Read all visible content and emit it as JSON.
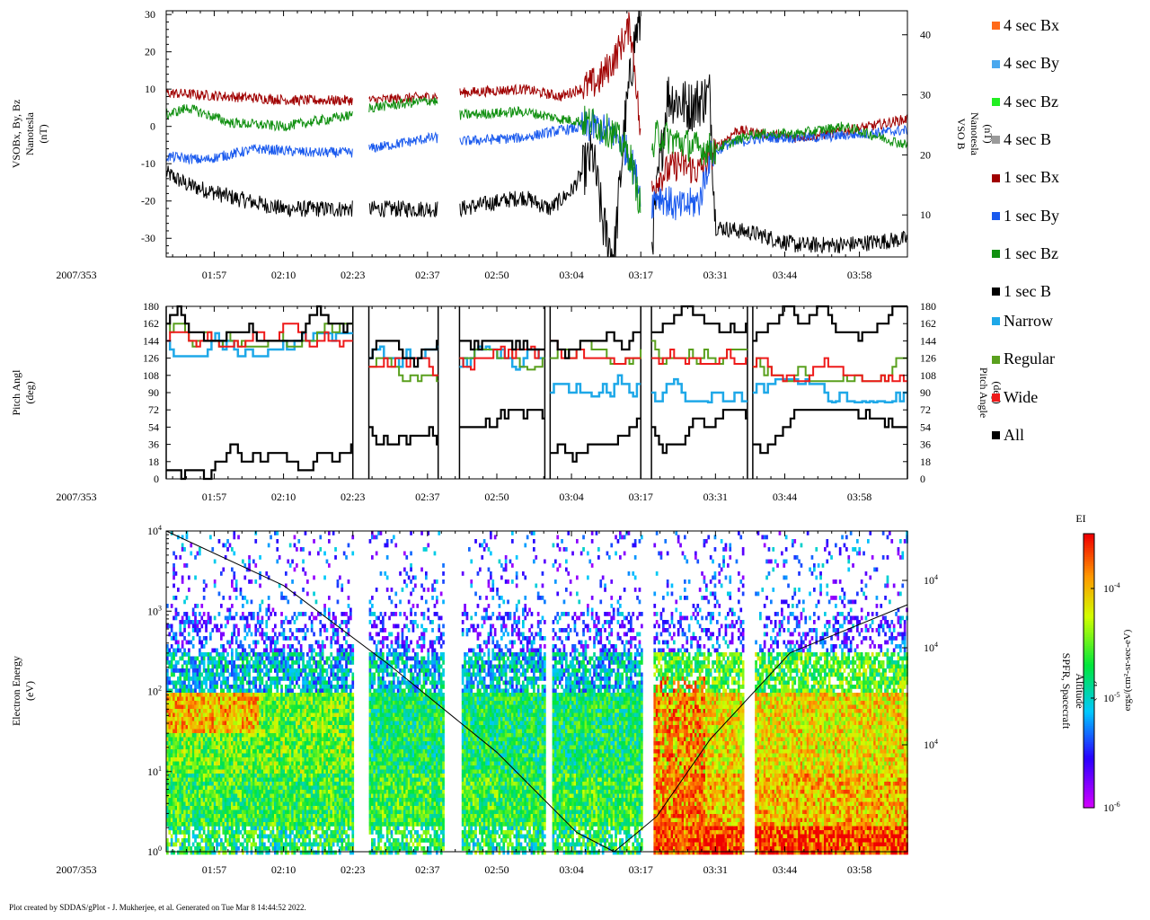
{
  "footer": "Plot created by SDDAS/gPlot - J. Mukherjee, et al.  Generated on Tue Mar 8 14:44:52 2022.",
  "date_label": "2007/353",
  "time_ticks": [
    "01:57",
    "02:10",
    "02:23",
    "02:37",
    "02:50",
    "03:04",
    "03:17",
    "03:31",
    "03:44",
    "03:58"
  ],
  "legend_b": [
    {
      "label": "4 sec Bx",
      "color": "#ff6a1a"
    },
    {
      "label": "4 sec By",
      "color": "#4aa8ee"
    },
    {
      "label": "4 sec Bz",
      "color": "#22ee22"
    },
    {
      "label": "4 sec B",
      "color": "#9a9a9a"
    },
    {
      "label": "1 sec Bx",
      "color": "#a00000"
    },
    {
      "label": "1 sec By",
      "color": "#1a5aee"
    },
    {
      "label": "1 sec Bz",
      "color": "#109010"
    },
    {
      "label": "1 sec B",
      "color": "#000000"
    }
  ],
  "legend_pa": [
    {
      "label": "Narrow",
      "color": "#1ea8e8"
    },
    {
      "label": "Regular",
      "color": "#5aa01e"
    },
    {
      "label": "Wide",
      "color": "#ee1a1a"
    },
    {
      "label": "All",
      "color": "#000000"
    }
  ],
  "colorbar": {
    "title": "EI",
    "unit_label": "ergs/(cm²-sr-sec-eV)",
    "ticks": [
      {
        "base": "10",
        "exp": "-4",
        "value_log": -4
      },
      {
        "base": "10",
        "exp": "-5",
        "value_log": -5
      },
      {
        "base": "10",
        "exp": "-6",
        "value_log": -6
      }
    ],
    "range_log": [
      -6,
      -3.5
    ]
  },
  "chart_data": [
    {
      "type": "line",
      "title": "",
      "xlabel": "2007/353",
      "ylabel_lines": [
        "VSOBx, By, Bz",
        "Nanotesla",
        "(nT)"
      ],
      "ylabel_right_lines": [
        "VSO B",
        "Nanotesla",
        "(nT)"
      ],
      "xlim": [
        "01:48",
        "04:07"
      ],
      "ylim": [
        -35,
        31
      ],
      "yticks": [
        -30,
        -20,
        -10,
        0,
        10,
        20,
        30
      ],
      "ylim_right": [
        3,
        44
      ],
      "yticks_right": [
        10,
        20,
        30,
        40
      ],
      "data_gaps": [
        [
          "02:23",
          "02:26"
        ],
        [
          "02:39",
          "02:43"
        ],
        [
          "03:17",
          "03:19"
        ]
      ],
      "series": [
        {
          "name": "1 sec Bx",
          "color": "#a00000",
          "x": [
            "01:48",
            "02:00",
            "02:12",
            "02:23",
            "02:26",
            "02:38",
            "02:43",
            "02:55",
            "03:02",
            "03:09",
            "03:12",
            "03:15",
            "03:16",
            "03:18",
            "03:20",
            "03:24",
            "03:28",
            "03:31",
            "03:35",
            "03:40",
            "03:46",
            "03:52",
            "04:00",
            "04:07"
          ],
          "y": [
            9,
            8,
            7,
            7,
            7,
            8,
            9,
            10,
            8,
            12,
            18,
            27,
            14,
            -22,
            -14,
            -10,
            -12,
            -6,
            -1,
            -2,
            -3,
            -2,
            0,
            2
          ]
        },
        {
          "name": "1 sec By",
          "color": "#1a5aee",
          "x": [
            "01:48",
            "01:55",
            "02:05",
            "02:15",
            "02:23",
            "02:26",
            "02:38",
            "02:43",
            "02:55",
            "03:02",
            "03:08",
            "03:12",
            "03:15",
            "03:17",
            "03:18",
            "03:20",
            "03:24",
            "03:28",
            "03:30",
            "03:33",
            "03:40",
            "03:50",
            "04:07"
          ],
          "y": [
            -8,
            -9,
            -6,
            -7,
            -7,
            -6,
            -3,
            -4,
            -3,
            -1,
            0,
            -2,
            -8,
            -18,
            -24,
            -18,
            -22,
            -20,
            -8,
            -5,
            -3,
            -3,
            -1
          ]
        },
        {
          "name": "1 sec Bz",
          "color": "#109010",
          "x": [
            "01:48",
            "01:52",
            "02:00",
            "02:10",
            "02:23",
            "02:26",
            "02:38",
            "02:43",
            "02:55",
            "03:02",
            "03:08",
            "03:12",
            "03:15",
            "03:17",
            "03:18",
            "03:20",
            "03:24",
            "03:28",
            "03:31",
            "03:38",
            "03:46",
            "03:55",
            "04:07"
          ],
          "y": [
            3,
            5,
            1,
            0,
            3,
            5,
            7,
            3,
            4,
            2,
            1,
            -2,
            -8,
            -22,
            -15,
            -2,
            -4,
            -6,
            -6,
            -2,
            -2,
            0,
            -5
          ]
        },
        {
          "name": "1 sec B",
          "color": "#000000",
          "x": [
            "01:48",
            "01:52",
            "02:00",
            "02:10",
            "02:23",
            "02:26",
            "02:38",
            "02:43",
            "02:55",
            "03:00",
            "03:04",
            "03:08",
            "03:10",
            "03:12",
            "03:14",
            "03:16",
            "03:17",
            "03:18",
            "03:19",
            "03:22",
            "03:26",
            "03:30",
            "03:31",
            "03:38",
            "03:46",
            "03:55",
            "04:07"
          ],
          "y": [
            17,
            15,
            13,
            11,
            11,
            11,
            11,
            11,
            13,
            11,
            14,
            20,
            8,
            3,
            25,
            40,
            42,
            22,
            5,
            30,
            28,
            30,
            8,
            7,
            5,
            5,
            6
          ]
        }
      ]
    },
    {
      "type": "step",
      "title": "",
      "xlabel": "2007/353",
      "ylabel_lines": [
        "Pitch Angl",
        "(deg)"
      ],
      "ylabel_right_lines": [
        "Pitch Angle",
        "(deg)"
      ],
      "xlim": [
        "01:48",
        "04:07"
      ],
      "ylim": [
        0,
        180
      ],
      "yticks": [
        0,
        18,
        36,
        54,
        72,
        90,
        108,
        126,
        144,
        162,
        180
      ],
      "segments": [
        {
          "start": "01:48",
          "end": "02:23",
          "upper": [
            144,
            180
          ],
          "lower": [
            0,
            36
          ],
          "narrow": 140
        },
        {
          "start": "02:26",
          "end": "02:39",
          "upper": [
            108,
            144
          ],
          "lower": [
            36,
            72
          ],
          "narrow": 126
        },
        {
          "start": "02:43",
          "end": "02:59",
          "upper": [
            120,
            144
          ],
          "lower": [
            54,
            72
          ],
          "narrow": 126
        },
        {
          "start": "03:00",
          "end": "03:17",
          "upper": [
            126,
            180
          ],
          "lower": [
            0,
            72
          ],
          "narrow": 98
        },
        {
          "start": "03:19",
          "end": "03:37",
          "upper": [
            126,
            180
          ],
          "lower": [
            18,
            72
          ],
          "narrow": 92
        },
        {
          "start": "03:38",
          "end": "04:07",
          "upper": [
            108,
            180
          ],
          "lower": [
            0,
            72
          ],
          "narrow": 92
        }
      ]
    },
    {
      "type": "heatmap",
      "title": "",
      "xlabel": "2007/353",
      "ylabel_lines": [
        "Electron Energy",
        "(eV)"
      ],
      "ylabel_right_lines": [
        "SPFR, Spacecraft",
        "Altitude",
        "(km)"
      ],
      "xlim": [
        "01:48",
        "04:07"
      ],
      "ylim_log": [
        0,
        4
      ],
      "yticks": [
        {
          "base": "10",
          "exp": "4"
        },
        {
          "base": "10",
          "exp": "3"
        },
        {
          "base": "10",
          "exp": "2"
        },
        {
          "base": "10",
          "exp": "1"
        },
        {
          "base": "10",
          "exp": "0"
        }
      ],
      "right_ticks": [
        {
          "base": "10",
          "exp": "4"
        },
        {
          "base": "10",
          "exp": "4"
        },
        {
          "base": "10",
          "exp": "4"
        }
      ],
      "data_gaps": [
        [
          "02:23",
          "02:26"
        ],
        [
          "02:40",
          "02:43"
        ],
        [
          "02:59",
          "03:00"
        ],
        [
          "03:17",
          "03:19"
        ],
        [
          "03:36",
          "03:38"
        ]
      ],
      "altitude_curve": {
        "x": [
          "01:48",
          "02:10",
          "02:30",
          "02:50",
          "03:05",
          "03:12",
          "03:20",
          "03:30",
          "03:45",
          "04:07"
        ],
        "y_frac": [
          1.0,
          0.83,
          0.58,
          0.31,
          0.06,
          0.0,
          0.11,
          0.35,
          0.62,
          0.77
        ]
      }
    }
  ]
}
